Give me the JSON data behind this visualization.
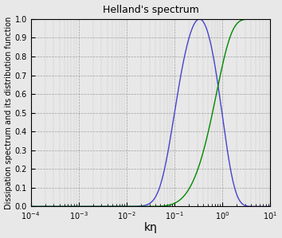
{
  "title": "Helland's spectrum",
  "xlabel": "kη",
  "ylabel": "Dissipation spectrum and its distribution function",
  "xlim_log": [
    -4,
    1
  ],
  "ylim": [
    0,
    1
  ],
  "yticks": [
    0,
    0.1,
    0.2,
    0.3,
    0.4,
    0.5,
    0.6,
    0.7,
    0.8,
    0.9,
    1.0
  ],
  "xticks_log": [
    -4,
    -3,
    -2,
    -1,
    0,
    1
  ],
  "blue_color": "#4444cc",
  "green_color": "#008800",
  "background_color": "#e8e8e8",
  "grid_color": "#999999",
  "title_fontsize": 9,
  "label_fontsize": 7,
  "tick_fontsize": 7,
  "k0eta": 0.05,
  "alpha_pao": 1.5,
  "line_width": 1.0
}
